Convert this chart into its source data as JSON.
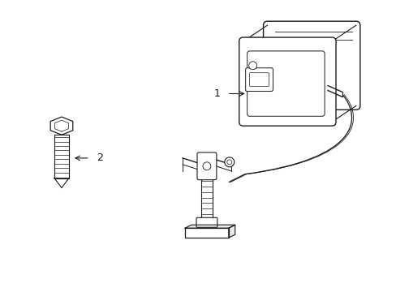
{
  "background_color": "#ffffff",
  "line_color": "#1a1a1a",
  "fig_width": 4.89,
  "fig_height": 3.6,
  "dpi": 100,
  "label1_text": "1",
  "label2_text": "2"
}
